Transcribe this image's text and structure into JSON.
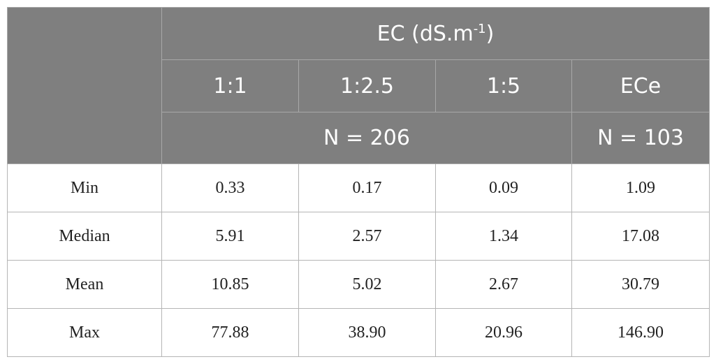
{
  "table": {
    "header": {
      "title": {
        "main": "EC (dS.m",
        "superscript": "-1",
        "close": ")"
      },
      "columns": [
        "1:1",
        "1:2.5",
        "1:5",
        "ECe"
      ],
      "counts": [
        "N = 206",
        "N = 103"
      ]
    },
    "rows": [
      [
        "Min",
        "0.33",
        "0.17",
        "0.09",
        "1.09"
      ],
      [
        "Median",
        "5.91",
        "2.57",
        "1.34",
        "17.08"
      ],
      [
        "Mean",
        "10.85",
        "5.02",
        "2.67",
        "30.79"
      ],
      [
        "Max",
        "77.88",
        "38.90",
        "20.96",
        "146.90"
      ]
    ]
  }
}
